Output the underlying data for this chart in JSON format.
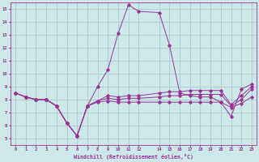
{
  "xlabel": "Windchill (Refroidissement éolien,°C)",
  "bg_color": "#cce8e8",
  "line_color": "#993399",
  "grid_color": "#aacccc",
  "xlim": [
    -0.5,
    23.5
  ],
  "ylim": [
    4.5,
    15.5
  ],
  "xticks": [
    0,
    1,
    2,
    3,
    4,
    5,
    6,
    7,
    8,
    9,
    10,
    11,
    12,
    14,
    15,
    16,
    17,
    18,
    19,
    20,
    21,
    22,
    23
  ],
  "yticks": [
    5,
    6,
    7,
    8,
    9,
    10,
    11,
    12,
    13,
    14,
    15
  ],
  "x_values": [
    0,
    1,
    2,
    3,
    4,
    5,
    6,
    7,
    8,
    9,
    10,
    11,
    12,
    14,
    15,
    16,
    17,
    18,
    19,
    20,
    21,
    22,
    23
  ],
  "series1": [
    8.5,
    8.2,
    8.0,
    8.0,
    7.5,
    6.2,
    5.2,
    7.5,
    9.0,
    10.3,
    13.1,
    15.3,
    14.8,
    14.7,
    12.2,
    8.5,
    8.3,
    8.2,
    8.2,
    7.8,
    6.7,
    8.8,
    9.2
  ],
  "series2": [
    8.5,
    8.2,
    8.0,
    8.0,
    7.5,
    6.2,
    5.2,
    7.5,
    7.9,
    8.3,
    8.2,
    8.3,
    8.3,
    8.5,
    8.6,
    8.6,
    8.7,
    8.7,
    8.7,
    8.7,
    7.6,
    8.3,
    9.0
  ],
  "series3": [
    8.5,
    8.2,
    8.0,
    8.0,
    7.5,
    6.2,
    5.2,
    7.5,
    7.9,
    8.1,
    8.0,
    8.1,
    8.1,
    8.2,
    8.3,
    8.3,
    8.4,
    8.4,
    8.4,
    8.4,
    7.5,
    8.0,
    8.8
  ],
  "series4": [
    8.5,
    8.2,
    8.0,
    8.0,
    7.5,
    6.2,
    5.2,
    7.5,
    7.8,
    7.9,
    7.8,
    7.8,
    7.8,
    7.8,
    7.8,
    7.8,
    7.8,
    7.8,
    7.8,
    7.8,
    7.4,
    7.7,
    8.2
  ]
}
